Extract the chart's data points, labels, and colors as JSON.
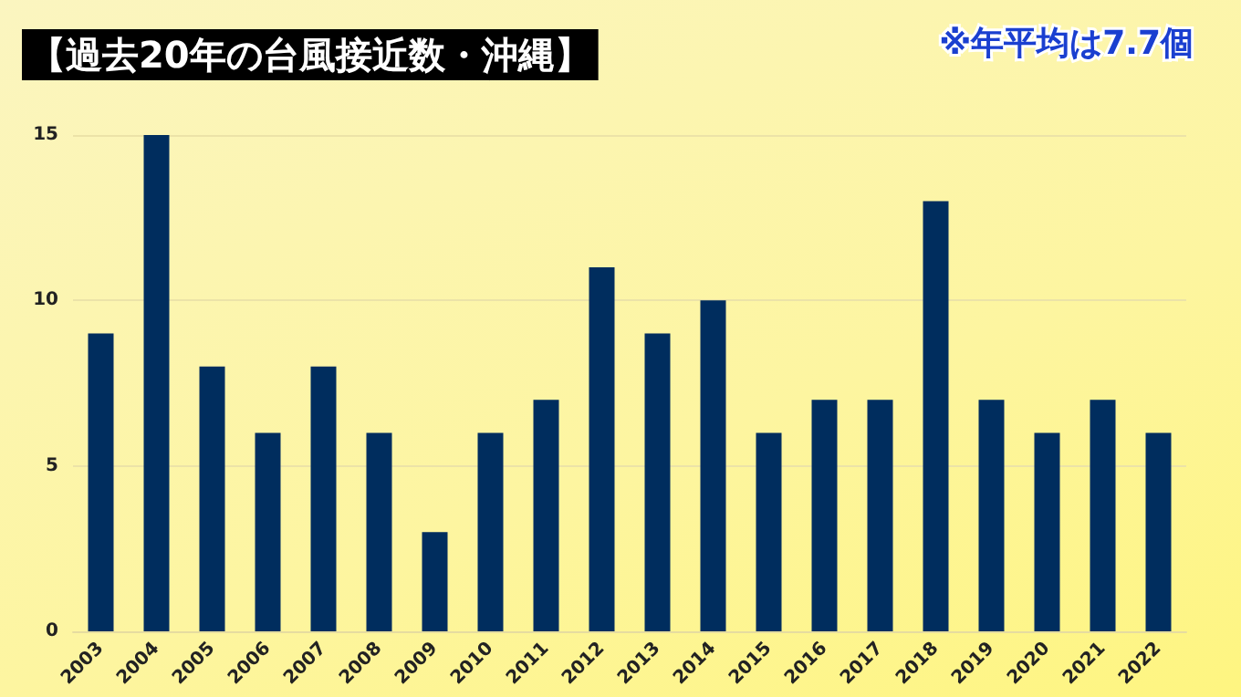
{
  "chart_data": {
    "type": "bar",
    "title": "【過去20年の台風接近数・沖縄】",
    "annotations": [
      "※年平均は7.7個"
    ],
    "categories": [
      "2003",
      "2004",
      "2005",
      "2006",
      "2007",
      "2008",
      "2009",
      "2010",
      "2011",
      "2012",
      "2013",
      "2014",
      "2015",
      "2016",
      "2017",
      "2018",
      "2019",
      "2020",
      "2021",
      "2022"
    ],
    "values": [
      9,
      15,
      8,
      6,
      8,
      6,
      3,
      6,
      7,
      11,
      9,
      10,
      6,
      7,
      7,
      13,
      7,
      6,
      7,
      6
    ],
    "color": "#002d5e",
    "ylim": [
      0,
      15
    ],
    "yticks": [
      0,
      5,
      10,
      15
    ],
    "grid": "y"
  }
}
